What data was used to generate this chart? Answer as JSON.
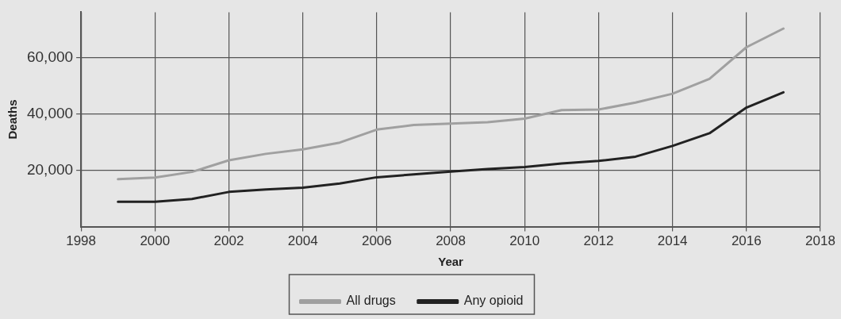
{
  "chart_data": {
    "type": "line",
    "xlabel": "Year",
    "ylabel": "Deaths",
    "x": [
      1999,
      2000,
      2001,
      2002,
      2003,
      2004,
      2005,
      2006,
      2007,
      2008,
      2009,
      2010,
      2011,
      2012,
      2013,
      2014,
      2015,
      2016,
      2017
    ],
    "series": [
      {
        "name": "All drugs",
        "color": "#a0a0a0",
        "values": [
          16800,
          17400,
          19400,
          23500,
          25800,
          27400,
          29800,
          34400,
          36000,
          36500,
          37000,
          38300,
          41300,
          41500,
          44000,
          47100,
          52400,
          63600,
          70200
        ]
      },
      {
        "name": "Any opioid",
        "color": "#222222",
        "values": [
          8800,
          8800,
          9800,
          12300,
          13200,
          13800,
          15300,
          17500,
          18500,
          19500,
          20400,
          21100,
          22400,
          23300,
          24800,
          28600,
          33100,
          42200,
          47600
        ]
      }
    ],
    "xlim": [
      1998,
      2018
    ],
    "xticks": [
      1998,
      2000,
      2002,
      2004,
      2006,
      2008,
      2010,
      2012,
      2014,
      2016,
      2018
    ],
    "ylim": [
      0,
      76000
    ],
    "yticks": [
      {
        "value": 20000,
        "label": "20,000"
      },
      {
        "value": 40000,
        "label": "40,000"
      },
      {
        "value": 60000,
        "label": "60,000"
      }
    ],
    "grid": true,
    "legend": "bottom",
    "marker": "none",
    "line_style": "solid"
  }
}
